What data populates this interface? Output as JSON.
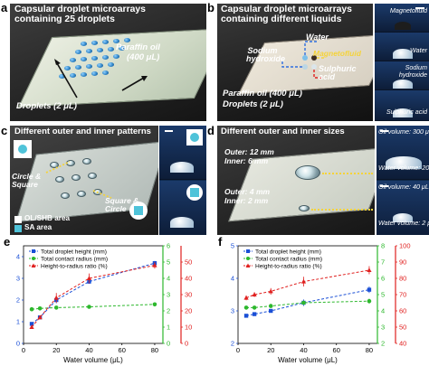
{
  "panels": {
    "a": {
      "label": "a",
      "title": "Capsular droplet microarrays containing 25 droplets",
      "paraffin": "Paraffin oil",
      "paraffin_vol": "(400 μL)",
      "droplets": "Droplets (2 μL)"
    },
    "b": {
      "label": "b",
      "title": "Capsular droplet microarrays containing different liquids",
      "water": "Water",
      "sodium": "Sodium hydroxide",
      "magneto": "Magnetofluid",
      "sulphuric": "Sulphuric acid",
      "paraffin": "Paraffin oil (400 μL)",
      "droplets": "Droplets (2 μL)",
      "insets": [
        "Magnetofluid",
        "Water",
        "Sodium hydroxide",
        "Sulphuric acid"
      ]
    },
    "c": {
      "label": "c",
      "title": "Different outer and inner patterns",
      "circle_square": "Circle & Square",
      "square_circle": "Square & Circle",
      "legend_ol": "OL/SHB area",
      "legend_sa": "SA area"
    },
    "d": {
      "label": "d",
      "title": "Different outer and inner sizes",
      "outer12": "Outer: 12 mm",
      "inner6": "Inner: 6 mm",
      "outer4": "Outer: 4 mm",
      "inner2": "Inner: 2 mm",
      "oil300": "Oil volume: 300 μL",
      "water20": "Water volume: 20 μL",
      "oil40": "Oil volume: 40 μL",
      "water2": "Water volume: 2 μL"
    }
  },
  "chart_data": [
    {
      "panel": "e",
      "type": "line",
      "xlabel": "Water volume (μL)",
      "x_ticks": [
        0,
        20,
        40,
        60,
        80
      ],
      "xlim": [
        0,
        85
      ],
      "left_axis": {
        "ylim": [
          0,
          4.5
        ],
        "ticks": [
          0,
          1,
          2,
          3,
          4
        ],
        "color": "#1a4fd6"
      },
      "right_axis_green": {
        "ylim": [
          0,
          6
        ],
        "ticks": [
          0,
          1,
          2,
          3,
          4,
          5,
          6
        ],
        "color": "#2db82d"
      },
      "right_axis_red": {
        "ylim": [
          0,
          60
        ],
        "ticks": [
          0,
          10,
          20,
          30,
          40,
          50
        ],
        "color": "#e0201f"
      },
      "series": [
        {
          "name": "Total droplet height (mm)",
          "axis": "left",
          "color": "#1a4fd6",
          "marker": "square",
          "x": [
            5,
            10,
            20,
            40,
            80
          ],
          "y": [
            0.9,
            1.2,
            2.0,
            2.85,
            3.7
          ],
          "err": [
            0.05,
            0.05,
            0.15,
            0.1,
            0.1
          ]
        },
        {
          "name": "Total contact radius (mm)",
          "axis": "green",
          "color": "#2db82d",
          "marker": "circle",
          "x": [
            5,
            10,
            20,
            40,
            80
          ],
          "y": [
            2.1,
            2.15,
            2.2,
            2.25,
            2.4
          ],
          "err": [
            0.05,
            0.05,
            0.05,
            0.05,
            0.1
          ]
        },
        {
          "name": "Height-to-radius ratio (%)",
          "axis": "red",
          "color": "#e0201f",
          "marker": "triangle",
          "x": [
            5,
            10,
            20,
            40,
            80
          ],
          "y": [
            10,
            16,
            28,
            40,
            48
          ],
          "err": [
            1,
            1,
            3,
            3,
            2
          ]
        }
      ]
    },
    {
      "panel": "f",
      "type": "line",
      "xlabel": "Water volume (μL)",
      "x_ticks": [
        0,
        20,
        40,
        60,
        80
      ],
      "xlim": [
        0,
        85
      ],
      "left_axis": {
        "ylim": [
          2,
          5
        ],
        "ticks": [
          2,
          3,
          4,
          5
        ],
        "color": "#1a4fd6"
      },
      "right_axis_green": {
        "ylim": [
          2,
          8
        ],
        "ticks": [
          2,
          3,
          4,
          5,
          6,
          7,
          8
        ],
        "color": "#2db82d"
      },
      "right_axis_red": {
        "ylim": [
          40,
          100
        ],
        "ticks": [
          40,
          50,
          60,
          70,
          80,
          90,
          100
        ],
        "color": "#e0201f"
      },
      "series": [
        {
          "name": "Total droplet height (mm)",
          "axis": "left",
          "color": "#1a4fd6",
          "marker": "square",
          "x": [
            5,
            10,
            20,
            40,
            80
          ],
          "y": [
            2.85,
            2.9,
            3.0,
            3.25,
            3.65
          ],
          "err": [
            0.05,
            0.05,
            0.05,
            0.1,
            0.1
          ]
        },
        {
          "name": "Total contact radius (mm)",
          "axis": "green",
          "color": "#2db82d",
          "marker": "circle",
          "x": [
            5,
            10,
            20,
            40,
            80
          ],
          "y": [
            4.2,
            4.2,
            4.3,
            4.5,
            4.6
          ],
          "err": [
            0.05,
            0.05,
            0.1,
            0.1,
            0.15
          ]
        },
        {
          "name": "Height-to-radius ratio (%)",
          "axis": "red",
          "color": "#e0201f",
          "marker": "triangle",
          "x": [
            5,
            10,
            20,
            40,
            80
          ],
          "y": [
            68,
            70,
            72,
            78,
            85
          ],
          "err": [
            1.5,
            1.5,
            2,
            3,
            2.5
          ]
        }
      ]
    }
  ]
}
